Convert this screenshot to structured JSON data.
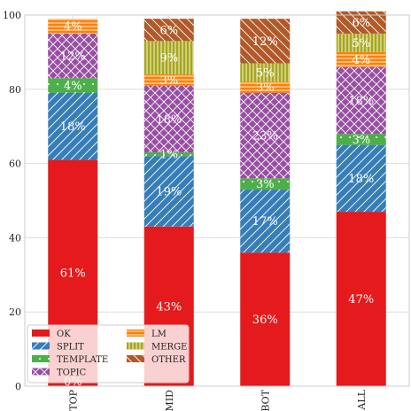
{
  "chart_data": {
    "type": "bar",
    "stacked": true,
    "categories": [
      "TOP",
      "MID",
      "BOT",
      "ALL"
    ],
    "ylim": [
      0,
      100
    ],
    "yticks": [
      0,
      20,
      40,
      60,
      80,
      100
    ],
    "grid": true,
    "legend_position": "bottom-left",
    "series": [
      {
        "name": "OK",
        "color": "#e41a1c",
        "hatch": "none",
        "values": [
          61,
          43,
          36,
          47
        ],
        "labels": [
          "61%",
          "43%",
          "36%",
          "47%"
        ]
      },
      {
        "name": "SPLIT",
        "color": "#377eb8",
        "hatch": "slash",
        "values": [
          18,
          19,
          17,
          18
        ],
        "labels": [
          "18%",
          "19%",
          "17%",
          "18%"
        ]
      },
      {
        "name": "TEMPLATE",
        "color": "#4daf4a",
        "hatch": "dot",
        "values": [
          4,
          1,
          3,
          3
        ],
        "labels": [
          "4%",
          "1%",
          "3%",
          "3%"
        ]
      },
      {
        "name": "TOPIC",
        "color": "#984ea3",
        "hatch": "cross",
        "values": [
          12,
          18,
          23,
          18
        ],
        "labels": [
          "12%",
          "18%",
          "23%",
          "18%"
        ]
      },
      {
        "name": "LM",
        "color": "#ff7f00",
        "hatch": "hline",
        "values": [
          4,
          3,
          3,
          4
        ],
        "labels": [
          "4%",
          "3%",
          "3%",
          "4%"
        ]
      },
      {
        "name": "MERGE",
        "color": "#a6a61a",
        "hatch": "vline",
        "values": [
          0,
          9,
          5,
          5
        ],
        "labels": [
          "",
          "9%",
          "5%",
          "5%"
        ]
      },
      {
        "name": "OTHER",
        "color": "#b15928",
        "hatch": "bslash",
        "values": [
          0,
          6,
          12,
          6
        ],
        "labels": [
          "",
          "6%",
          "12%",
          "6%"
        ]
      }
    ],
    "extra_labels": [
      {
        "category": "TOP",
        "text": "0%"
      }
    ]
  }
}
